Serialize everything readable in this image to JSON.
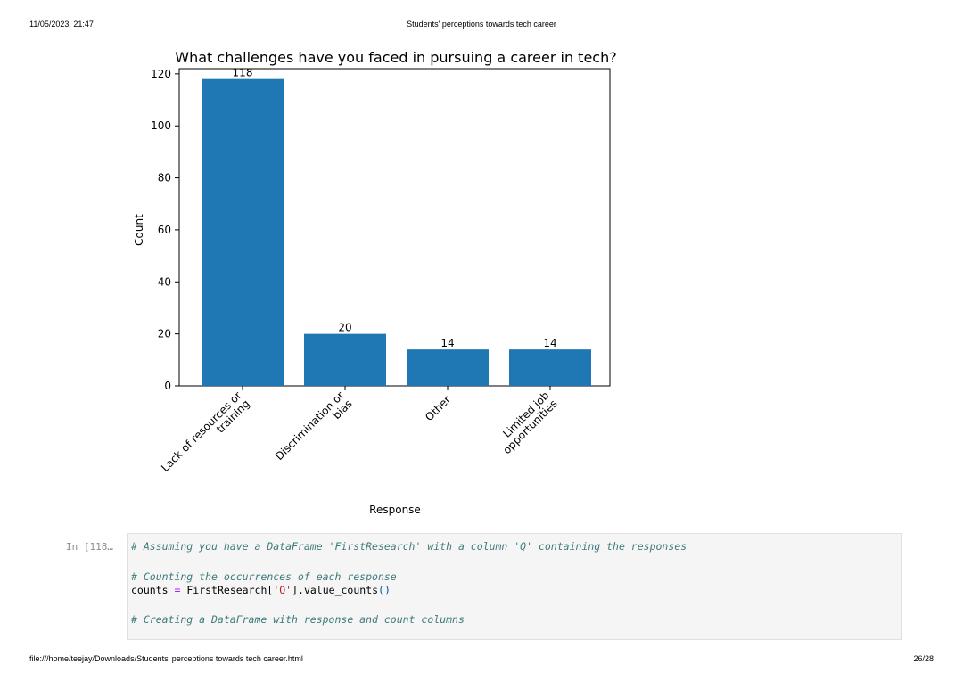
{
  "print_header": {
    "datetime": "11/05/2023, 21:47",
    "title": "Students' perceptions towards tech career"
  },
  "print_footer": {
    "path": "file:///home/teejay/Downloads/Students' perceptions towards tech career.html",
    "page": "26/28"
  },
  "chart_data": {
    "type": "bar",
    "title": "What challenges have you faced in pursuing a career in tech?",
    "xlabel": "Response",
    "ylabel": "Count",
    "categories": [
      [
        "Lack of resources or",
        "training"
      ],
      [
        "Discrimination or",
        "bias"
      ],
      [
        "Other"
      ],
      [
        "Limited job",
        "opportunities"
      ]
    ],
    "values": [
      118,
      20,
      14,
      14
    ],
    "ylim": [
      0,
      122
    ],
    "yticks": [
      0,
      20,
      40,
      60,
      80,
      100,
      120
    ],
    "bar_color": "#1f77b4",
    "grid": false
  },
  "cell": {
    "prompt": "In [118…",
    "line1": "# Assuming you have a DataFrame 'FirstResearch' with a column 'Q' containing the responses",
    "line2": "# Counting the occurrences of each response",
    "line3_var": "counts",
    "line3_op": "=",
    "line3_obj": "FirstResearch",
    "line3_lb": "[",
    "line3_str": "'Q'",
    "line3_rb": "]",
    "line3_call": ".value_counts",
    "line3_parens": "()",
    "line4": "# Creating a DataFrame with response and count columns"
  }
}
